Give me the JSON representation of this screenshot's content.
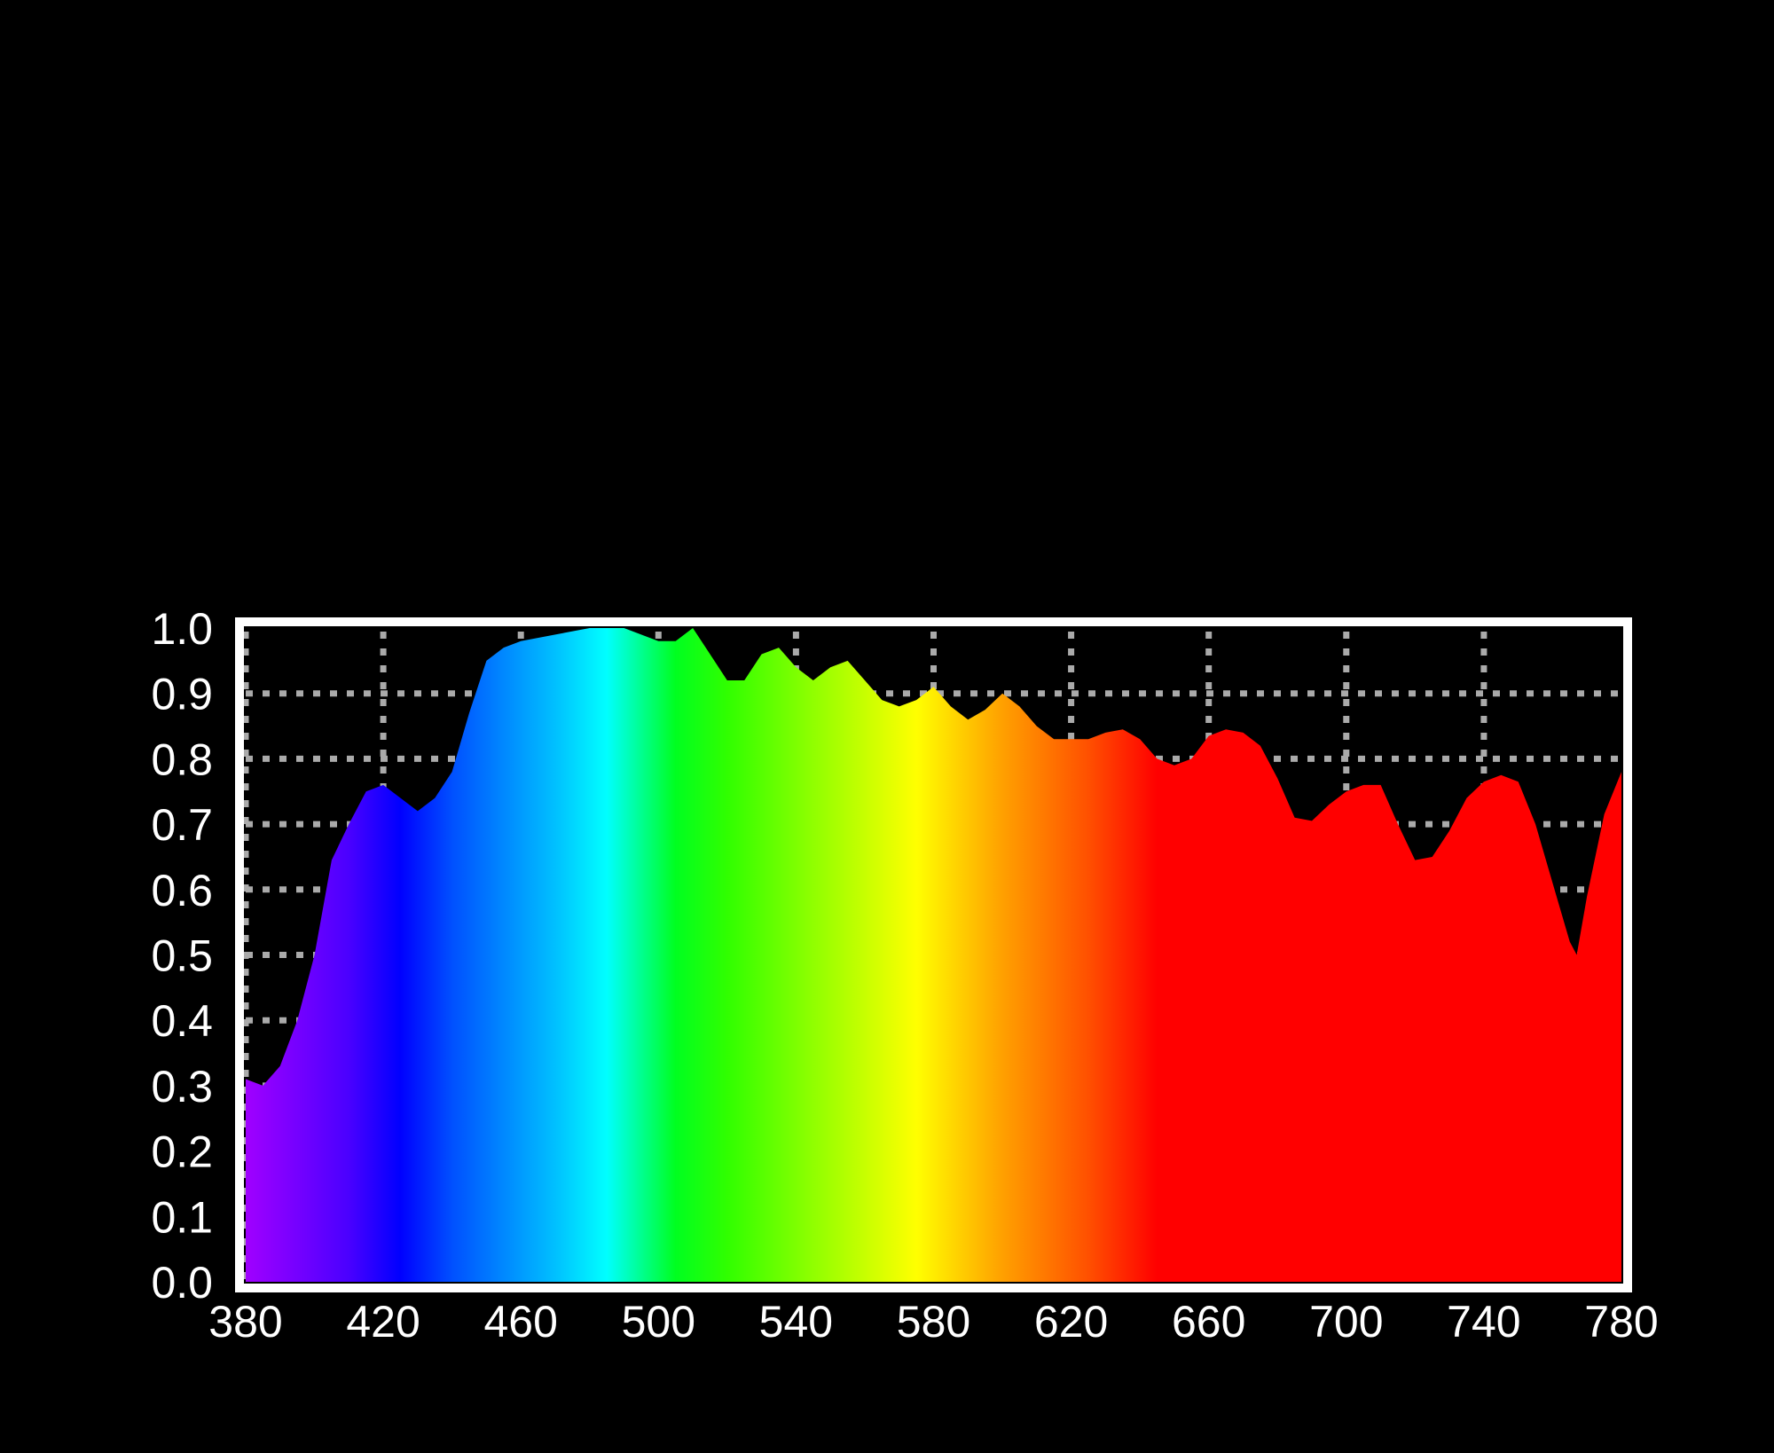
{
  "chart_data": {
    "type": "area",
    "title": "",
    "xlabel": "",
    "ylabel": "",
    "xlim": [
      380,
      780
    ],
    "ylim": [
      0,
      1.0
    ],
    "grid": true,
    "x_ticks": [
      "380",
      "420",
      "460",
      "500",
      "540",
      "580",
      "620",
      "660",
      "700",
      "740",
      "780"
    ],
    "y_ticks": [
      "0.0",
      "0.1",
      "0.2",
      "0.3",
      "0.4",
      "0.5",
      "0.6",
      "0.7",
      "0.8",
      "0.9",
      "1.0"
    ],
    "fill": "visible spectrum gradient (violet to red)",
    "colors": {
      "background": "#000000",
      "frame": "#ffffff",
      "grid": "#aaaaaa"
    },
    "spectrum_stops": [
      {
        "nm": 380,
        "color": "#a000ff"
      },
      {
        "nm": 410,
        "color": "#4a00ff"
      },
      {
        "nm": 425,
        "color": "#0000ff"
      },
      {
        "nm": 440,
        "color": "#0050ff"
      },
      {
        "nm": 470,
        "color": "#00c0ff"
      },
      {
        "nm": 485,
        "color": "#00ffff"
      },
      {
        "nm": 505,
        "color": "#00ff20"
      },
      {
        "nm": 520,
        "color": "#30ff00"
      },
      {
        "nm": 545,
        "color": "#90ff00"
      },
      {
        "nm": 575,
        "color": "#ffff00"
      },
      {
        "nm": 600,
        "color": "#ffa000"
      },
      {
        "nm": 625,
        "color": "#ff5000"
      },
      {
        "nm": 645,
        "color": "#ff0000"
      },
      {
        "nm": 780,
        "color": "#ff0000"
      }
    ],
    "x": [
      380,
      385,
      390,
      395,
      400,
      405,
      410,
      415,
      420,
      425,
      430,
      435,
      440,
      445,
      450,
      455,
      460,
      470,
      480,
      490,
      500,
      505,
      510,
      515,
      520,
      525,
      530,
      535,
      540,
      545,
      550,
      555,
      560,
      565,
      570,
      575,
      580,
      585,
      590,
      595,
      600,
      605,
      610,
      615,
      620,
      625,
      630,
      635,
      640,
      645,
      650,
      655,
      660,
      665,
      670,
      675,
      680,
      685,
      690,
      695,
      700,
      705,
      710,
      715,
      720,
      725,
      730,
      735,
      740,
      745,
      750,
      755,
      760,
      765,
      767,
      770,
      775,
      780
    ],
    "values": [
      0.31,
      0.3,
      0.33,
      0.4,
      0.5,
      0.645,
      0.7,
      0.75,
      0.76,
      0.74,
      0.72,
      0.74,
      0.78,
      0.87,
      0.95,
      0.97,
      0.98,
      0.99,
      1.0,
      1.0,
      0.98,
      0.98,
      1.0,
      0.96,
      0.92,
      0.92,
      0.96,
      0.97,
      0.94,
      0.92,
      0.94,
      0.95,
      0.92,
      0.89,
      0.88,
      0.89,
      0.91,
      0.88,
      0.86,
      0.875,
      0.9,
      0.88,
      0.85,
      0.83,
      0.83,
      0.83,
      0.84,
      0.845,
      0.83,
      0.8,
      0.79,
      0.8,
      0.835,
      0.845,
      0.84,
      0.82,
      0.77,
      0.71,
      0.705,
      0.73,
      0.75,
      0.76,
      0.76,
      0.7,
      0.645,
      0.65,
      0.69,
      0.74,
      0.765,
      0.775,
      0.765,
      0.7,
      0.61,
      0.52,
      0.5,
      0.59,
      0.715,
      0.78
    ]
  }
}
